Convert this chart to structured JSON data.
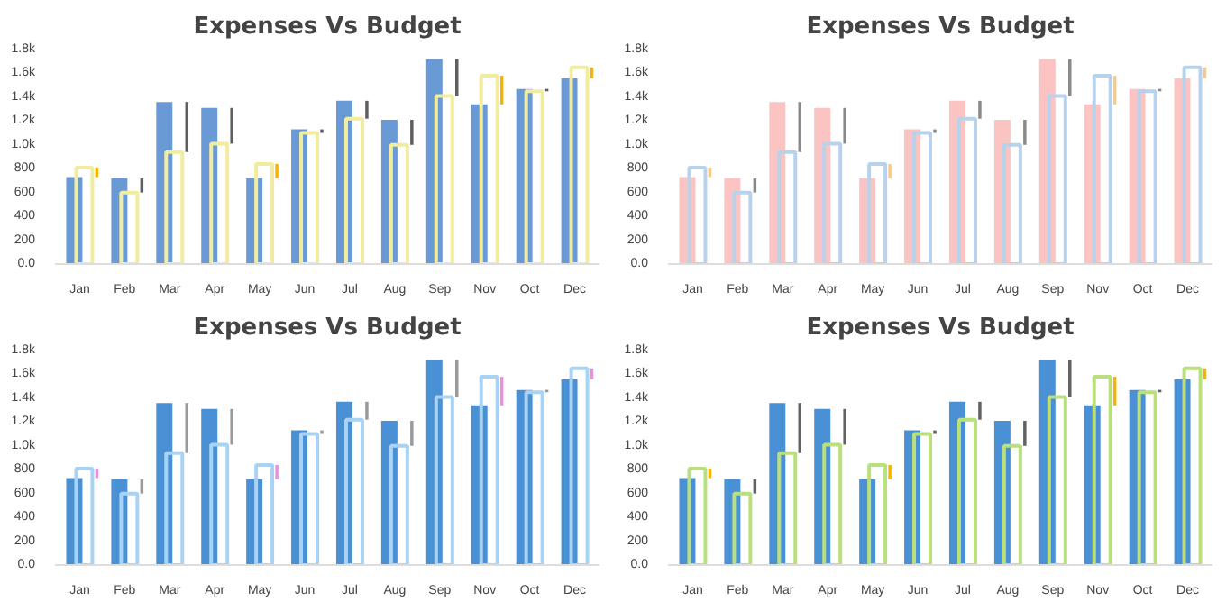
{
  "chart_data": [
    {
      "type": "bar",
      "title": "Expenses Vs Budget",
      "categories": [
        "Jan",
        "Feb",
        "Mar",
        "Apr",
        "May",
        "Jun",
        "Jul",
        "Aug",
        "Sep",
        "Nov",
        "Oct",
        "Dec"
      ],
      "ylim": [
        0,
        1800
      ],
      "yticks": [
        {
          "value": 0,
          "label": "0.0"
        },
        200,
        400,
        600,
        800,
        {
          "value": 1000,
          "label": "1.0k"
        },
        {
          "value": 1200,
          "label": "1.2k"
        },
        {
          "value": 1400,
          "label": "1.4k"
        },
        {
          "value": 1600,
          "label": "1.6k"
        },
        {
          "value": 1800,
          "label": "1.8k"
        }
      ],
      "grid": false,
      "series": [
        {
          "color": "#6a9ad6",
          "values": [
            730,
            720,
            1360,
            1310,
            720,
            1130,
            1370,
            1210,
            1720,
            1340,
            1470,
            1560
          ]
        },
        {
          "color": "#f2eca0",
          "values": [
            810,
            600,
            940,
            1010,
            840,
            1100,
            1220,
            1000,
            1410,
            1580,
            1450,
            1650
          ]
        },
        {
          "colors": [
            "#f5b400",
            "#5f5f5f",
            "#5f5f5f",
            "#5f5f5f",
            "#f5b400",
            "#5f5f5f",
            "#5f5f5f",
            "#5f5f5f",
            "#5f5f5f",
            "#f5b400",
            "#5f5f5f",
            "#f5b400"
          ],
          "base": [
            730,
            720,
            1360,
            1310,
            720,
            1130,
            1370,
            1210,
            1720,
            1340,
            1470,
            1560
          ],
          "values": [
            80,
            -120,
            -420,
            -300,
            120,
            -30,
            -150,
            -210,
            -310,
            240,
            -20,
            90
          ]
        }
      ]
    },
    {
      "type": "bar",
      "title": "Expenses Vs Budget",
      "categories": [
        "Jan",
        "Feb",
        "Mar",
        "Apr",
        "May",
        "Jun",
        "Jul",
        "Aug",
        "Sep",
        "Nov",
        "Oct",
        "Dec"
      ],
      "ylim": [
        0,
        1800
      ],
      "yticks": [
        {
          "value": 0,
          "label": "0.0"
        },
        200,
        400,
        600,
        800,
        {
          "value": 1000,
          "label": "1.0k"
        },
        {
          "value": 1200,
          "label": "1.2k"
        },
        {
          "value": 1400,
          "label": "1.4k"
        },
        {
          "value": 1600,
          "label": "1.6k"
        },
        {
          "value": 1800,
          "label": "1.8k"
        }
      ],
      "grid": false,
      "series": [
        {
          "color": "#fbc4c2",
          "values": [
            730,
            720,
            1360,
            1310,
            720,
            1130,
            1370,
            1210,
            1720,
            1340,
            1470,
            1560
          ]
        },
        {
          "color": "#b9d2ec",
          "values": [
            810,
            600,
            940,
            1010,
            840,
            1100,
            1220,
            1000,
            1410,
            1580,
            1450,
            1650
          ]
        },
        {
          "colors": [
            "#f7c98a",
            "#8a8a8a",
            "#8a8a8a",
            "#8a8a8a",
            "#f7c98a",
            "#8a8a8a",
            "#8a8a8a",
            "#8a8a8a",
            "#8a8a8a",
            "#f7c98a",
            "#8a8a8a",
            "#f7c98a"
          ],
          "base": [
            730,
            720,
            1360,
            1310,
            720,
            1130,
            1370,
            1210,
            1720,
            1340,
            1470,
            1560
          ],
          "values": [
            80,
            -120,
            -420,
            -300,
            120,
            -30,
            -150,
            -210,
            -310,
            240,
            -20,
            90
          ]
        }
      ]
    },
    {
      "type": "bar",
      "title": "Expenses Vs Budget",
      "categories": [
        "Jan",
        "Feb",
        "Mar",
        "Apr",
        "May",
        "Jun",
        "Jul",
        "Aug",
        "Sep",
        "Nov",
        "Oct",
        "Dec"
      ],
      "ylim": [
        0,
        1800
      ],
      "yticks": [
        {
          "value": 0,
          "label": "0.0"
        },
        200,
        400,
        600,
        800,
        {
          "value": 1000,
          "label": "1.0k"
        },
        {
          "value": 1200,
          "label": "1.2k"
        },
        {
          "value": 1400,
          "label": "1.4k"
        },
        {
          "value": 1600,
          "label": "1.6k"
        },
        {
          "value": 1800,
          "label": "1.8k"
        }
      ],
      "grid": false,
      "series": [
        {
          "color": "#4a90d4",
          "values": [
            730,
            720,
            1360,
            1310,
            720,
            1130,
            1370,
            1210,
            1720,
            1340,
            1470,
            1560
          ]
        },
        {
          "color": "#a9d3f5",
          "values": [
            810,
            600,
            940,
            1010,
            840,
            1100,
            1220,
            1000,
            1410,
            1580,
            1450,
            1650
          ]
        },
        {
          "colors": [
            "#e98fe0",
            "#9a9a9a",
            "#9a9a9a",
            "#9a9a9a",
            "#e98fe0",
            "#9a9a9a",
            "#9a9a9a",
            "#9a9a9a",
            "#9a9a9a",
            "#e98fe0",
            "#9a9a9a",
            "#e98fe0"
          ],
          "base": [
            730,
            720,
            1360,
            1310,
            720,
            1130,
            1370,
            1210,
            1720,
            1340,
            1470,
            1560
          ],
          "values": [
            80,
            -120,
            -420,
            -300,
            120,
            -30,
            -150,
            -210,
            -310,
            240,
            -20,
            90
          ]
        }
      ]
    },
    {
      "type": "bar",
      "title": "Expenses Vs Budget",
      "categories": [
        "Jan",
        "Feb",
        "Mar",
        "Apr",
        "May",
        "Jun",
        "Jul",
        "Aug",
        "Sep",
        "Nov",
        "Oct",
        "Dec"
      ],
      "ylim": [
        0,
        1800
      ],
      "yticks": [
        {
          "value": 0,
          "label": "0.0"
        },
        200,
        400,
        600,
        800,
        {
          "value": 1000,
          "label": "1.0k"
        },
        {
          "value": 1200,
          "label": "1.2k"
        },
        {
          "value": 1400,
          "label": "1.4k"
        },
        {
          "value": 1600,
          "label": "1.6k"
        },
        {
          "value": 1800,
          "label": "1.8k"
        }
      ],
      "grid": false,
      "series": [
        {
          "color": "#4a90d4",
          "values": [
            730,
            720,
            1360,
            1310,
            720,
            1130,
            1370,
            1210,
            1720,
            1340,
            1470,
            1560
          ]
        },
        {
          "color": "#b9e07c",
          "values": [
            810,
            600,
            940,
            1010,
            840,
            1100,
            1220,
            1000,
            1410,
            1580,
            1450,
            1650
          ]
        },
        {
          "colors": [
            "#f5b400",
            "#626262",
            "#626262",
            "#626262",
            "#f5b400",
            "#626262",
            "#626262",
            "#626262",
            "#626262",
            "#f5b400",
            "#626262",
            "#f5b400"
          ],
          "base": [
            730,
            720,
            1360,
            1310,
            720,
            1130,
            1370,
            1210,
            1720,
            1340,
            1470,
            1560
          ],
          "values": [
            80,
            -120,
            -420,
            -300,
            120,
            -30,
            -150,
            -210,
            -310,
            240,
            -20,
            90
          ]
        }
      ]
    }
  ]
}
